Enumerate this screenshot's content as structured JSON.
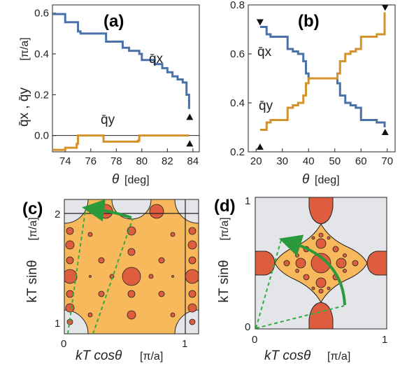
{
  "figure": {
    "colors": {
      "qx": "#4a72a8",
      "qy": "#d4922b",
      "fill_region": "#f7b95c",
      "fill_gray": "#e4e5e8",
      "circle": "#dd5d3e",
      "arrow": "#2a9a3c",
      "dashed": "#2fae3e",
      "axis": "#222222"
    },
    "icons": [
      "triangle-down-marker",
      "triangle-up-marker",
      "green-arrow"
    ]
  },
  "panel_a": {
    "label": "(a)",
    "ylabel_main": "q̄x , q̄y",
    "ylabel_unit": "[π/a]",
    "xlabel_main": "θ",
    "xlabel_unit": "[deg]",
    "series_qx": "q̄x",
    "series_qy": "q̄y"
  },
  "panel_b": {
    "label": "(b)",
    "xlabel_main": "θ",
    "xlabel_unit": "[deg]",
    "series_qx": "q̄x",
    "series_qy": "q̄y"
  },
  "panel_c": {
    "label": "(c)",
    "ylabel_main": "kT sinθ",
    "ylabel_unit": "[π/a]",
    "xlabel_main": "kT cosθ",
    "xlabel_unit": "[π/a]",
    "xticks": [
      "0",
      "1"
    ],
    "yticks": [
      "2",
      "1"
    ]
  },
  "panel_d": {
    "label": "(d)",
    "ylabel_main": "kT sinθ",
    "ylabel_unit": "[π/a]",
    "xlabel_main": "kT cosθ",
    "xlabel_unit": "[π/a]",
    "xticks": [
      "0",
      "1"
    ],
    "yticks": [
      "0",
      "1"
    ]
  },
  "chart_data": [
    {
      "type": "line",
      "panel": "(a)",
      "title": "",
      "xlabel": "θ [deg]",
      "ylabel": "q̄x , q̄y [π/a]",
      "xlim": [
        73,
        84.5
      ],
      "ylim": [
        -0.08,
        0.64
      ],
      "xticks": [
        74,
        76,
        78,
        80,
        82,
        84
      ],
      "yticks": [
        0.0,
        0.2,
        0.4,
        0.6
      ],
      "grid": false,
      "series": [
        {
          "name": "q̄x",
          "x": [
            73.0,
            74.0,
            75.0,
            75.2,
            77.0,
            77.2,
            78.5,
            79.0,
            79.8,
            80.0,
            81.0,
            81.6,
            82.0,
            82.4,
            82.8,
            83.2,
            83.5,
            83.7
          ],
          "y": [
            0.595,
            0.555,
            0.51,
            0.5,
            0.5,
            0.46,
            0.43,
            0.415,
            0.4,
            0.37,
            0.35,
            0.33,
            0.31,
            0.29,
            0.275,
            0.26,
            0.2,
            0.13
          ]
        },
        {
          "name": "q̄y",
          "x": [
            73.0,
            74.0,
            74.9,
            75.0,
            76.8,
            77.0,
            79.7,
            79.8,
            83.7
          ],
          "y": [
            -0.07,
            -0.06,
            -0.04,
            0.0,
            0.0,
            -0.03,
            -0.025,
            0.0,
            0.0
          ]
        }
      ],
      "markers": [
        {
          "shape": "triangle-up",
          "x": 83.75,
          "y": 0.09
        },
        {
          "shape": "triangle-up",
          "x": 83.75,
          "y": -0.04
        }
      ]
    },
    {
      "type": "line",
      "panel": "(b)",
      "title": "",
      "xlabel": "θ [deg]",
      "ylabel": "",
      "xlim": [
        17,
        73
      ],
      "ylim": [
        0.2,
        0.8
      ],
      "xticks": [
        20,
        30,
        40,
        50,
        60,
        70
      ],
      "yticks": [
        0.2,
        0.4,
        0.6,
        0.8
      ],
      "grid": false,
      "series": [
        {
          "name": "q̄x",
          "x": [
            21.5,
            24.0,
            25.5,
            30.0,
            32.0,
            34.0,
            36.0,
            38.0,
            39.0,
            40.0,
            50.0,
            51.0,
            52.0,
            54.0,
            56.0,
            58.0,
            60.0,
            64.5,
            66.0,
            69.0
          ],
          "y": [
            0.71,
            0.68,
            0.67,
            0.67,
            0.62,
            0.61,
            0.6,
            0.57,
            0.52,
            0.5,
            0.5,
            0.48,
            0.43,
            0.4,
            0.39,
            0.38,
            0.33,
            0.33,
            0.32,
            0.3
          ]
        },
        {
          "name": "q̄y",
          "x": [
            21.5,
            24.0,
            25.5,
            30.0,
            32.0,
            34.0,
            36.0,
            38.0,
            39.0,
            40.0,
            50.0,
            51.0,
            52.0,
            54.0,
            56.0,
            58.0,
            60.0,
            64.5,
            66.0,
            69.0
          ],
          "y": [
            0.29,
            0.32,
            0.33,
            0.33,
            0.38,
            0.39,
            0.4,
            0.43,
            0.48,
            0.5,
            0.5,
            0.52,
            0.57,
            0.6,
            0.61,
            0.62,
            0.67,
            0.67,
            0.68,
            0.77
          ]
        }
      ],
      "markers": [
        {
          "shape": "triangle-down",
          "x": 21.5,
          "y": 0.73
        },
        {
          "shape": "triangle-up",
          "x": 21.5,
          "y": 0.22
        },
        {
          "shape": "triangle-down",
          "x": 69.2,
          "y": 0.79
        },
        {
          "shape": "triangle-up",
          "x": 69.2,
          "y": 0.28
        }
      ]
    }
  ]
}
